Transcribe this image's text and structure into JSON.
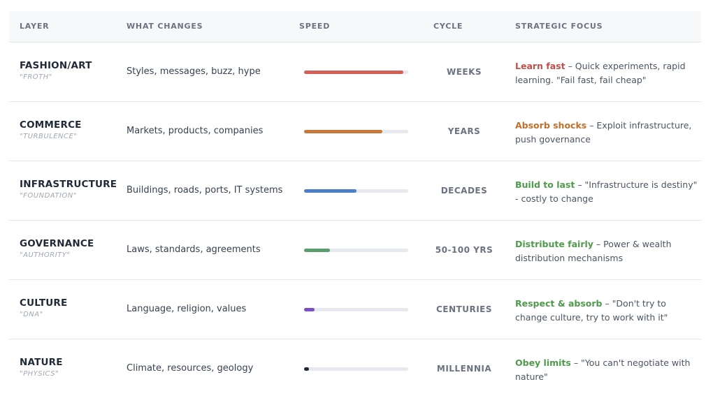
{
  "headers": {
    "layer": "LAYER",
    "what": "WHAT CHANGES",
    "speed": "SPEED",
    "cycle": "CYCLE",
    "focus": "STRATEGIC FOCUS"
  },
  "rows": [
    {
      "name": "FASHION/ART",
      "subtitle": "\"FROTH\"",
      "what": "Styles, messages, buzz, hype",
      "speed": 0.95,
      "color": "#d4605a",
      "cycle": "WEEKS",
      "focus_head": "Learn fast",
      "focus_body": " – Quick experiments, rapid learning. \"Fail fast, fail cheap\""
    },
    {
      "name": "COMMERCE",
      "subtitle": "\"TURBULENCE\"",
      "what": "Markets, products, companies",
      "speed": 0.75,
      "color": "#c8783a",
      "cycle": "YEARS",
      "focus_head": "Absorb shocks",
      "focus_body": " – Exploit infrastructure, push governance"
    },
    {
      "name": "INFRASTRUCTURE",
      "subtitle": "\"FOUNDATION\"",
      "what": "Buildings, roads, ports, IT systems",
      "speed": 0.5,
      "color": "#4a7ec8",
      "cycle": "DECADES",
      "focus_head": "Build to last",
      "focus_body": " – \"Infrastructure is destiny\" - costly to change"
    },
    {
      "name": "GOVERNANCE",
      "subtitle": "\"AUTHORITY\"",
      "what": "Laws, standards, agreements",
      "speed": 0.25,
      "color": "#5a9e6e",
      "cycle": "50-100 YRS",
      "focus_head": "Distribute fairly",
      "focus_body": " – Power & wealth distribution mechanisms"
    },
    {
      "name": "CULTURE",
      "subtitle": "\"DNA\"",
      "what": "Language, religion, values",
      "speed": 0.1,
      "color": "#7b4fc4",
      "cycle": "CENTURIES",
      "focus_head": "Respect & absorb",
      "focus_body": " – \"Don't try to change culture, try to work with it\""
    },
    {
      "name": "NATURE",
      "subtitle": "\"PHYSICS\"",
      "what": "Climate, resources, geology",
      "speed": 0.05,
      "color": "#1f2937",
      "cycle": "MILLENNIA",
      "focus_head": "Obey limits",
      "focus_body": " – \"You can't negotiate with nature\""
    }
  ],
  "focus_head_colors": [
    "#c0504a",
    "#c0702a",
    "#4f9a4c",
    "#4f9a4c",
    "#4f9a4c",
    "#4f9a4c"
  ]
}
